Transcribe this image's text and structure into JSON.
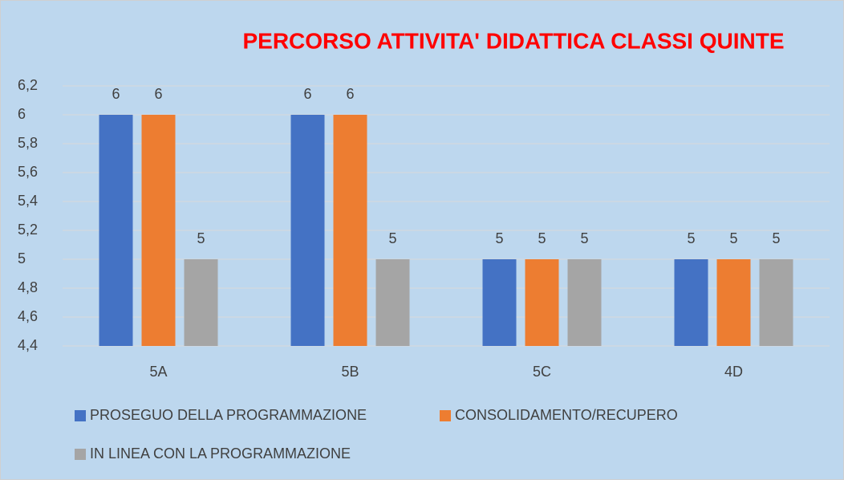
{
  "chart_data": {
    "type": "bar",
    "title": "PERCORSO ATTIVITA' DIDATTICA CLASSI QUINTE",
    "categories": [
      "5A",
      "5B",
      "5C",
      "4D"
    ],
    "series": [
      {
        "name": "PROSEGUO DELLA PROGRAMMAZIONE",
        "color": "#4472c4",
        "values": [
          6,
          6,
          5,
          5
        ]
      },
      {
        "name": "CONSOLIDAMENTO/RECUPERO",
        "color": "#ed7d31",
        "values": [
          6,
          6,
          5,
          5
        ]
      },
      {
        "name": "IN LINEA CON LA PROGRAMMAZIONE",
        "color": "#a5a5a5",
        "values": [
          5,
          5,
          5,
          5
        ]
      }
    ],
    "ylim": [
      4.4,
      6.2
    ],
    "yticks": [
      {
        "value": 4.4,
        "label": "4,4"
      },
      {
        "value": 4.6,
        "label": "4,6"
      },
      {
        "value": 4.8,
        "label": "4,8"
      },
      5,
      {
        "value": 5.2,
        "label": "5,2"
      },
      {
        "value": 5.4,
        "label": "5,4"
      },
      {
        "value": 5.6,
        "label": "5,6"
      },
      {
        "value": 5.8,
        "label": "5,8"
      },
      6,
      {
        "value": 6.2,
        "label": "6,2"
      }
    ],
    "grid": true,
    "legend": "bottom"
  }
}
